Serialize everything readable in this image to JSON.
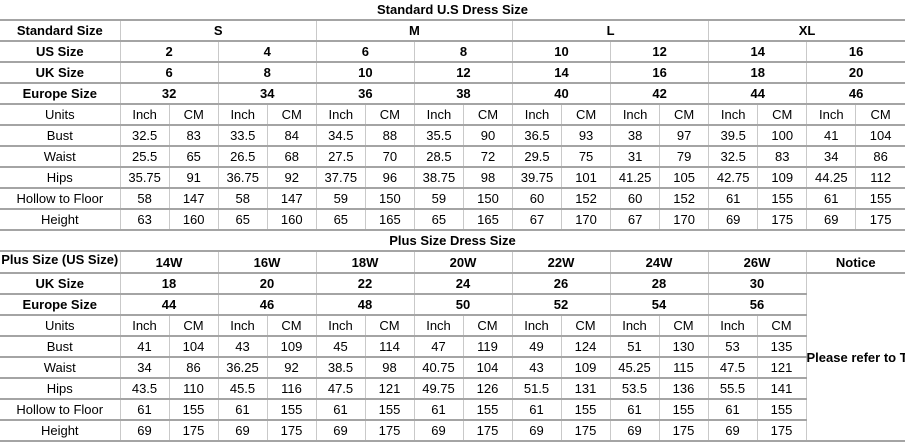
{
  "theme": {
    "background": "#ffffff",
    "text": "#000000",
    "grid_horizontal": "#a4a4a4",
    "grid_vertical": "#c9c9c9"
  },
  "tables": [
    {
      "id": "standard",
      "title": "Standard U.S Dress Size",
      "header_rows": [
        {
          "label": "Standard Size",
          "span": 4,
          "values": [
            "S",
            "M",
            "L",
            "XL"
          ]
        },
        {
          "label": "US Size",
          "span": 2,
          "values": [
            "2",
            "4",
            "6",
            "8",
            "10",
            "12",
            "14",
            "16"
          ]
        },
        {
          "label": "UK Size",
          "span": 2,
          "values": [
            "6",
            "8",
            "10",
            "12",
            "14",
            "16",
            "18",
            "20"
          ]
        },
        {
          "label": "Europe Size",
          "span": 2,
          "values": [
            "32",
            "34",
            "36",
            "38",
            "40",
            "42",
            "44",
            "46"
          ]
        }
      ],
      "units_row": {
        "label": "Units",
        "values": [
          "Inch",
          "CM",
          "Inch",
          "CM",
          "Inch",
          "CM",
          "Inch",
          "CM",
          "Inch",
          "CM",
          "Inch",
          "CM",
          "Inch",
          "CM",
          "Inch",
          "CM"
        ]
      },
      "measurement_rows": [
        {
          "label": "Bust",
          "values": [
            "32.5",
            "83",
            "33.5",
            "84",
            "34.5",
            "88",
            "35.5",
            "90",
            "36.5",
            "93",
            "38",
            "97",
            "39.5",
            "100",
            "41",
            "104"
          ]
        },
        {
          "label": "Waist",
          "values": [
            "25.5",
            "65",
            "26.5",
            "68",
            "27.5",
            "70",
            "28.5",
            "72",
            "29.5",
            "75",
            "31",
            "79",
            "32.5",
            "83",
            "34",
            "86"
          ]
        },
        {
          "label": "Hips",
          "values": [
            "35.75",
            "91",
            "36.75",
            "92",
            "37.75",
            "96",
            "38.75",
            "98",
            "39.75",
            "101",
            "41.25",
            "105",
            "42.75",
            "109",
            "44.25",
            "112"
          ]
        },
        {
          "label": "Hollow to Floor",
          "values": [
            "58",
            "147",
            "58",
            "147",
            "59",
            "150",
            "59",
            "150",
            "60",
            "152",
            "60",
            "152",
            "61",
            "155",
            "61",
            "155"
          ]
        },
        {
          "label": "Height",
          "values": [
            "63",
            "160",
            "65",
            "160",
            "65",
            "165",
            "65",
            "165",
            "67",
            "170",
            "67",
            "170",
            "69",
            "175",
            "69",
            "175"
          ]
        }
      ],
      "notice": null
    },
    {
      "id": "plus",
      "title": "Plus Size Dress Size",
      "header_rows": [
        {
          "label": "Plus Size (US Size)",
          "span": 2,
          "clip": true,
          "values": [
            "14W",
            "16W",
            "18W",
            "20W",
            "22W",
            "24W",
            "26W"
          ]
        },
        {
          "label": "UK Size",
          "span": 2,
          "values": [
            "18",
            "20",
            "22",
            "24",
            "26",
            "28",
            "30"
          ]
        },
        {
          "label": "Europe Size",
          "span": 2,
          "values": [
            "44",
            "46",
            "48",
            "50",
            "52",
            "54",
            "56"
          ]
        }
      ],
      "units_row": {
        "label": "Units",
        "values": [
          "Inch",
          "CM",
          "Inch",
          "CM",
          "Inch",
          "CM",
          "Inch",
          "CM",
          "Inch",
          "CM",
          "Inch",
          "CM",
          "Inch",
          "CM"
        ]
      },
      "measurement_rows": [
        {
          "label": "Bust",
          "values": [
            "41",
            "104",
            "43",
            "109",
            "45",
            "114",
            "47",
            "119",
            "49",
            "124",
            "51",
            "130",
            "53",
            "135"
          ]
        },
        {
          "label": "Waist",
          "values": [
            "34",
            "86",
            "36.25",
            "92",
            "38.5",
            "98",
            "40.75",
            "104",
            "43",
            "109",
            "45.25",
            "115",
            "47.5",
            "121"
          ]
        },
        {
          "label": "Hips",
          "values": [
            "43.5",
            "110",
            "45.5",
            "116",
            "47.5",
            "121",
            "49.75",
            "126",
            "51.5",
            "131",
            "53.5",
            "136",
            "55.5",
            "141"
          ]
        },
        {
          "label": "Hollow to Floor",
          "values": [
            "61",
            "155",
            "61",
            "155",
            "61",
            "155",
            "61",
            "155",
            "61",
            "155",
            "61",
            "155",
            "61",
            "155"
          ]
        },
        {
          "label": "Height",
          "values": [
            "69",
            "175",
            "69",
            "175",
            "69",
            "175",
            "69",
            "175",
            "69",
            "175",
            "69",
            "175",
            "69",
            "175"
          ]
        }
      ],
      "notice": {
        "title": "Notice",
        "text": "Please refer to Timoromode size chart for the most accurate measurement to ensure the dress fits well."
      }
    }
  ]
}
